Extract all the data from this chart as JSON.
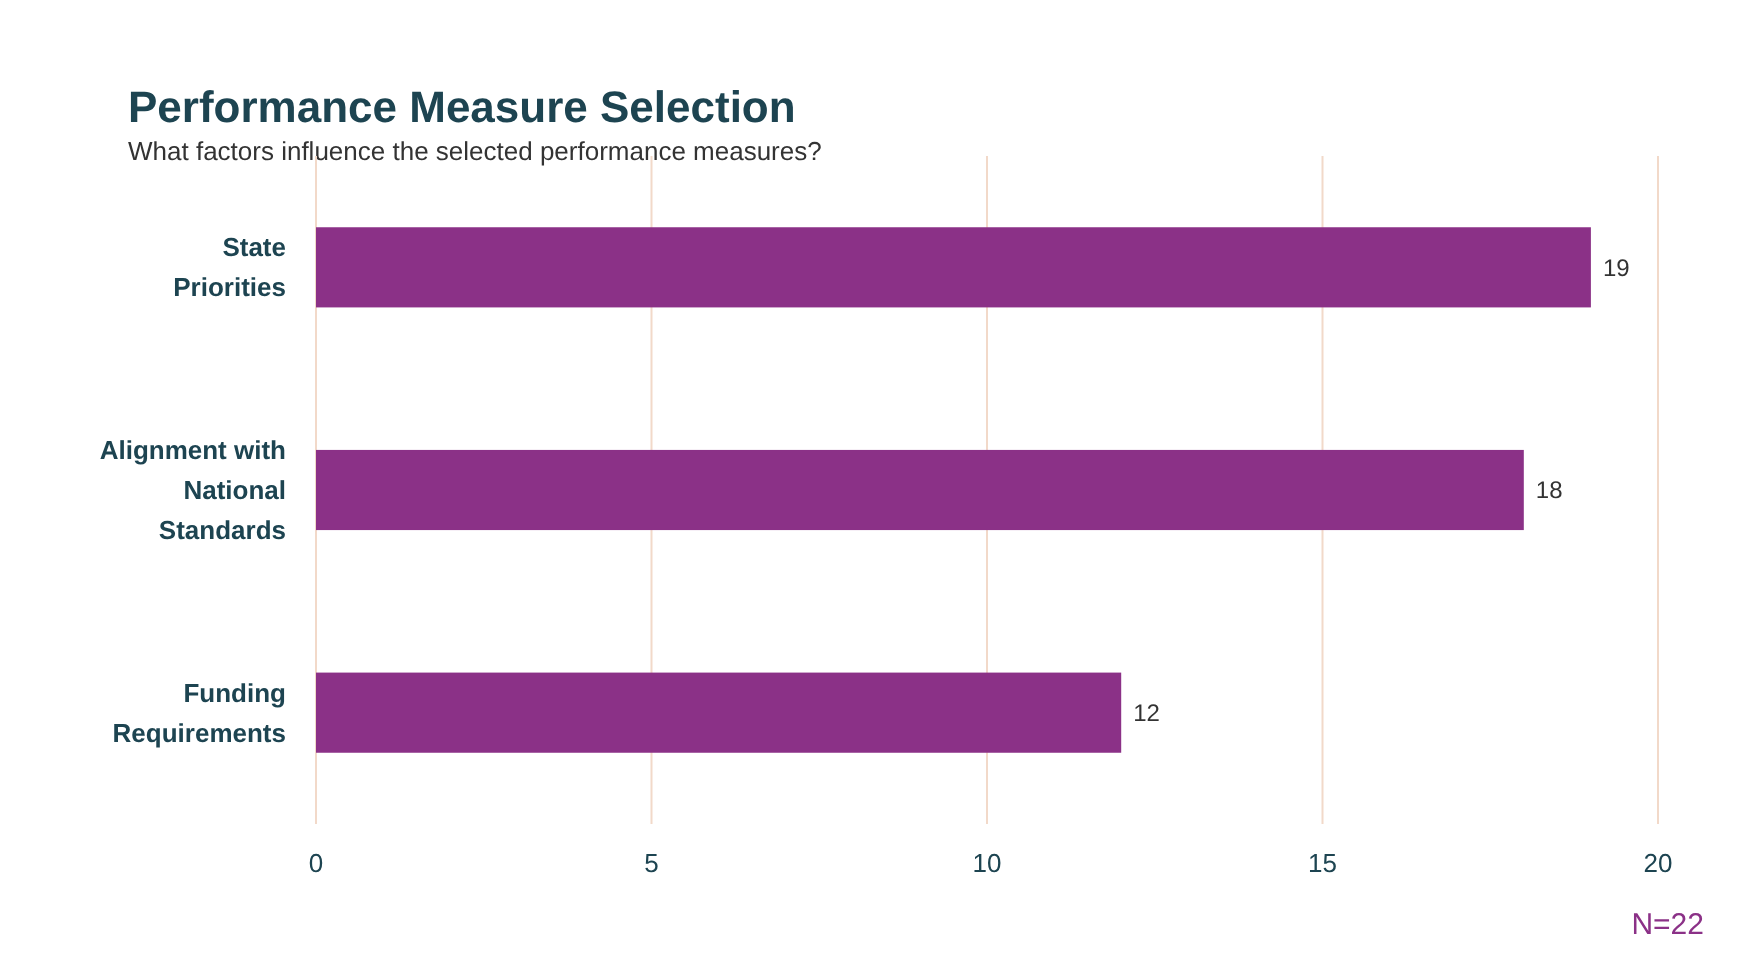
{
  "chart_data": {
    "type": "bar",
    "orientation": "horizontal",
    "title": "Performance Measure Selection",
    "subtitle": "What factors influence the selected performance measures?",
    "categories": [
      "State Priorities",
      "Alignment with National Standards",
      "Funding Requirements"
    ],
    "values": [
      19,
      18,
      12
    ],
    "color": "#8b3187",
    "xlim": [
      0,
      20
    ],
    "xticks": [
      0,
      5,
      10,
      15,
      20
    ],
    "grid": "x",
    "data_labels": true,
    "annotations": [
      "N=22"
    ]
  }
}
